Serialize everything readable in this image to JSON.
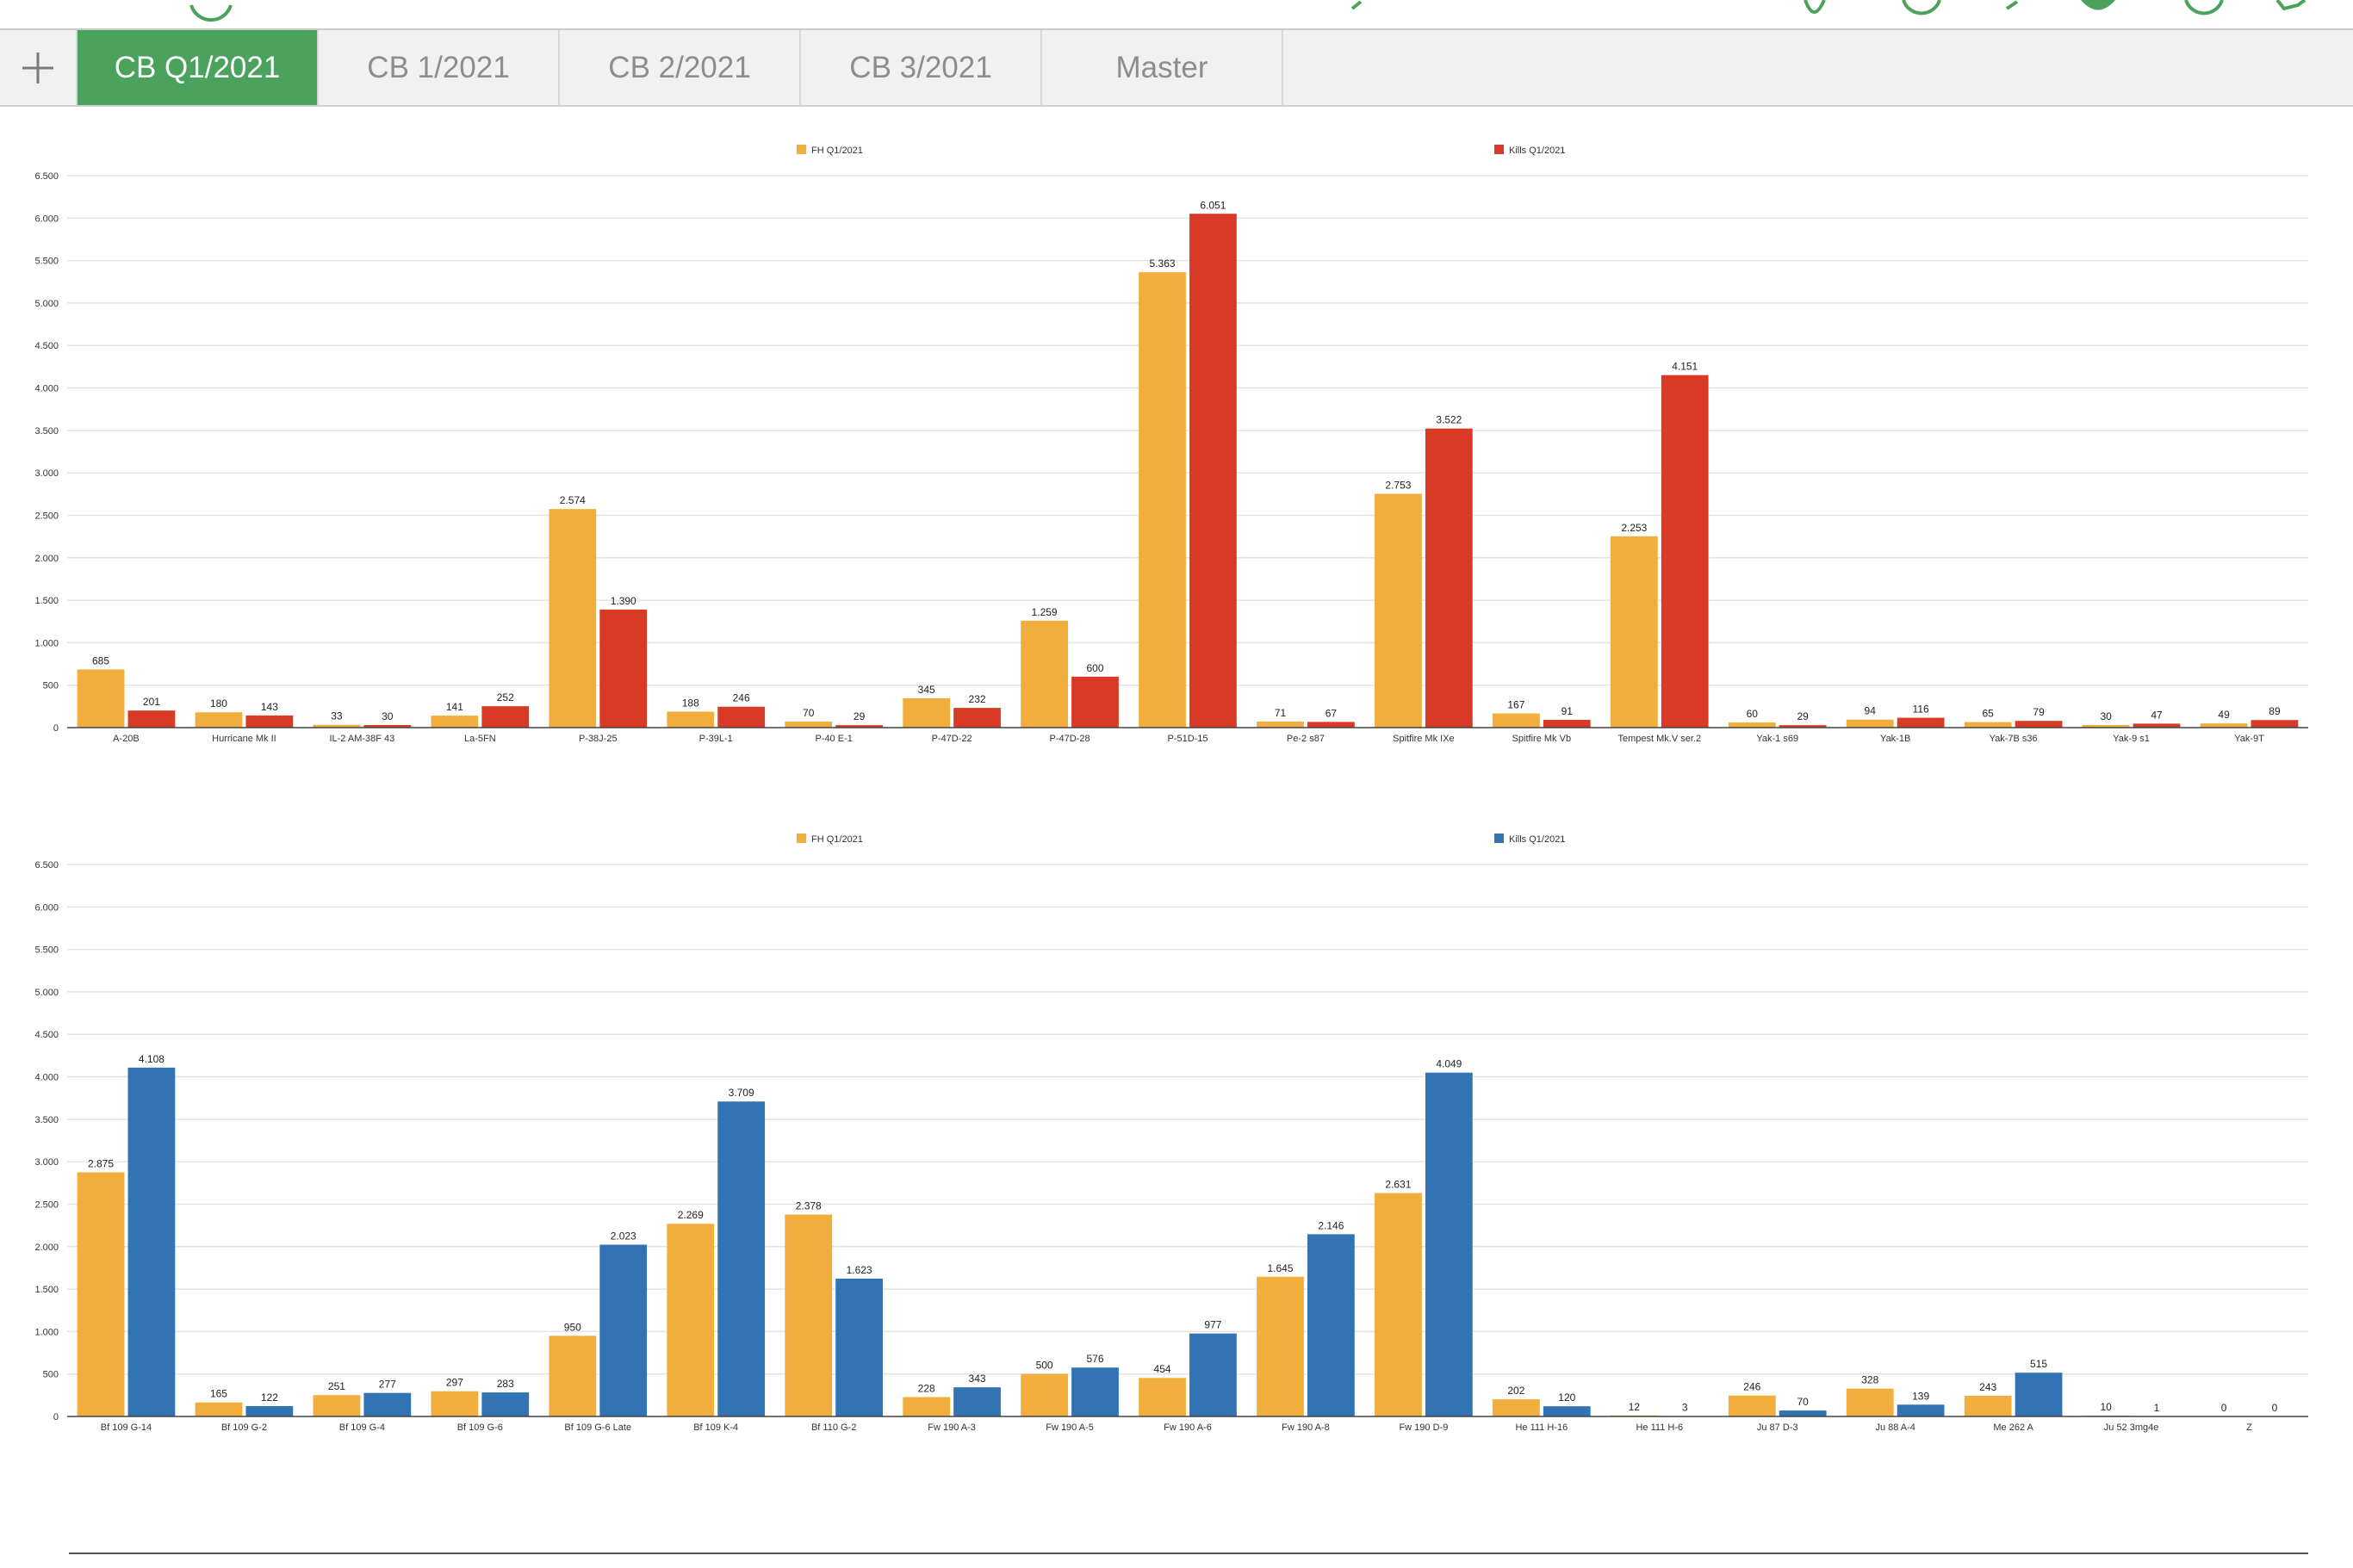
{
  "tabs": [
    {
      "label": "CB Q1/2021",
      "active": true
    },
    {
      "label": "CB 1/2021",
      "active": false
    },
    {
      "label": "CB 2/2021",
      "active": false
    },
    {
      "label": "CB 3/2021",
      "active": false
    },
    {
      "label": "Master",
      "active": false
    }
  ],
  "toolbar_icons": [
    "partial-icon",
    "partial-icon",
    "partial-icon",
    "partial-icon",
    "partial-icon",
    "partial-icon",
    "partial-icon"
  ],
  "colors": {
    "fh": "#f2ae3c",
    "kills_allied": "#d93a26",
    "kills_axis": "#3273b4",
    "tab_active": "#4aa25d",
    "grid": "#e3e3e3"
  },
  "chart_data": [
    {
      "type": "bar",
      "title": "",
      "xlabel": "",
      "ylabel": "",
      "ylim": [
        0,
        6500
      ],
      "grid": true,
      "legend": "top",
      "categories": [
        "A-20B",
        "Hurricane Mk II",
        "IL-2 AM-38F 43",
        "La-5FN",
        "P-38J-25",
        "P-39L-1",
        "P-40 E-1",
        "P-47D-22",
        "P-47D-28",
        "P-51D-15",
        "Pe-2 s87",
        "Spitfire Mk IXe",
        "Spitfire Mk Vb",
        "Tempest Mk.V ser.2",
        "Yak-1 s69",
        "Yak-1B",
        "Yak-7B s36",
        "Yak-9 s1",
        "Yak-9T"
      ],
      "series": [
        {
          "name": "FH Q1/2021",
          "values": [
            685,
            180,
            33,
            141,
            2574,
            188,
            70,
            345,
            1259,
            5363,
            71,
            2753,
            167,
            2253,
            60,
            94,
            65,
            30,
            49
          ]
        },
        {
          "name": "Kills Q1/2021",
          "values": [
            201,
            143,
            30,
            252,
            1390,
            246,
            29,
            232,
            600,
            6051,
            67,
            3522,
            91,
            4151,
            29,
            116,
            79,
            47,
            89
          ]
        }
      ]
    },
    {
      "type": "bar",
      "title": "",
      "xlabel": "",
      "ylabel": "",
      "ylim": [
        0,
        6500
      ],
      "grid": true,
      "legend": "top",
      "categories": [
        "Bf 109 G-14",
        "Bf 109 G-2",
        "Bf 109 G-4",
        "Bf 109 G-6",
        "Bf 109 G-6 Late",
        "Bf 109 K-4",
        "Bf 110 G-2",
        "Fw 190 A-3",
        "Fw 190 A-5",
        "Fw 190 A-6",
        "Fw 190 A-8",
        "Fw 190 D-9",
        "He 111 H-16",
        "He 111 H-6",
        "Ju 87 D-3",
        "Ju 88 A-4",
        "Me 262 A",
        "Ju 52 3mg4e",
        "Z"
      ],
      "series": [
        {
          "name": "FH Q1/2021",
          "values": [
            2875,
            165,
            251,
            297,
            950,
            2269,
            2378,
            228,
            500,
            454,
            1645,
            2631,
            202,
            12,
            246,
            328,
            243,
            10,
            0
          ]
        },
        {
          "name": "Kills Q1/2021",
          "values": [
            4108,
            122,
            277,
            283,
            2023,
            3709,
            1623,
            343,
            576,
            977,
            2146,
            4049,
            120,
            3,
            70,
            139,
            515,
            1,
            0
          ]
        }
      ]
    }
  ]
}
